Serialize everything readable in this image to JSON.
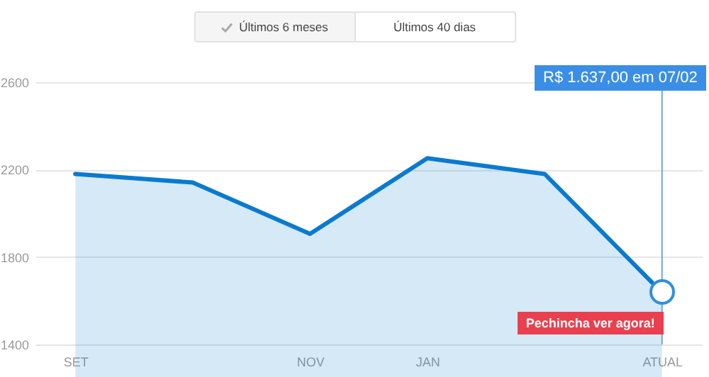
{
  "chart_data": {
    "type": "area",
    "categories": [
      "SET",
      null,
      "NOV",
      "JAN",
      null,
      "ATUAL"
    ],
    "series": [
      {
        "color": "#0a7acf",
        "values": [
          2180,
          2141,
          1906,
          2252,
          2180,
          1637
        ]
      }
    ],
    "ylim": [
      1400,
      2600
    ],
    "yticks": [
      1400,
      1800,
      2200,
      2600
    ],
    "grid": "y",
    "ref_lines": [
      {
        "axis": "x",
        "value": "ATUAL",
        "color": "#6fa8dc"
      }
    ],
    "annotations": [
      "Últimos 6 meses",
      "Últimos 40 dias",
      "R$ 1.637,00 em 07/02",
      "Pechincha ver agora!"
    ]
  }
}
